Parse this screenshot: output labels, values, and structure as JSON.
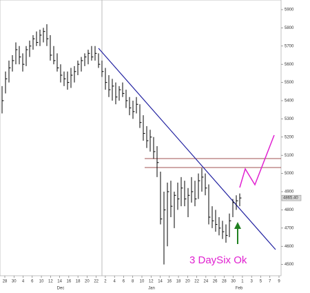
{
  "chart_data": {
    "type": "hlc",
    "annotation": "3 DaySix Ok",
    "ylim": [
      4438,
      5953
    ],
    "yticks": [
      4500,
      4600,
      4700,
      4800,
      4900,
      5000,
      5100,
      5200,
      5300,
      5400,
      5500,
      5600,
      5700,
      5800,
      5900
    ],
    "last_price": {
      "value": 4865.4,
      "label": "4865.40"
    },
    "x_labels": [
      "28",
      "30",
      "4",
      "6",
      "10",
      "12",
      "14",
      "16",
      "18",
      "20",
      "22",
      "2",
      "4",
      "6",
      "8",
      "10",
      "12",
      "14",
      "16",
      "18",
      "20",
      "22",
      "24",
      "26",
      "28",
      "30",
      "1",
      "3",
      "5",
      "7",
      "9"
    ],
    "months": [
      "Dec",
      "Jan",
      "Feb"
    ],
    "color": "#000000",
    "high": [
      5480,
      5560,
      5620,
      5650,
      5720,
      5700,
      5660,
      5700,
      5730,
      5760,
      5780,
      5790,
      5800,
      5820,
      5760,
      5700,
      5660,
      5600,
      5560,
      5560,
      5580,
      5590,
      5620,
      5640,
      5660,
      5680,
      5700,
      5700,
      5660,
      5620,
      5580,
      5540,
      5520,
      5500,
      5480,
      5500,
      5460,
      5420,
      5400,
      5420,
      5380,
      5320,
      5260,
      5240,
      5200,
      5150,
      5010,
      4900,
      4950,
      4960,
      4900,
      4950,
      4980,
      4960,
      4920,
      4980,
      4960,
      5000,
      5030,
      5000,
      4940,
      4820,
      4800,
      4760,
      4740,
      4720,
      4780,
      4860,
      4880,
      4890
    ],
    "low": [
      5330,
      5440,
      5500,
      5560,
      5600,
      5600,
      5560,
      5590,
      5640,
      5680,
      5700,
      5700,
      5720,
      5700,
      5620,
      5600,
      5560,
      5500,
      5480,
      5460,
      5470,
      5500,
      5540,
      5560,
      5590,
      5600,
      5620,
      5620,
      5580,
      5530,
      5460,
      5420,
      5400,
      5380,
      5400,
      5420,
      5360,
      5320,
      5300,
      5330,
      5250,
      5180,
      5140,
      5120,
      5080,
      4980,
      4720,
      4500,
      4600,
      4760,
      4700,
      4800,
      4820,
      4820,
      4760,
      4840,
      4820,
      4860,
      4900,
      4880,
      4720,
      4700,
      4680,
      4660,
      4640,
      4620,
      4650,
      4760,
      4800,
      4820
    ],
    "close": [
      5400,
      5520,
      5580,
      5620,
      5680,
      5640,
      5600,
      5680,
      5700,
      5740,
      5720,
      5760,
      5780,
      5740,
      5650,
      5620,
      5580,
      5540,
      5520,
      5500,
      5540,
      5560,
      5600,
      5620,
      5640,
      5660,
      5640,
      5660,
      5600,
      5560,
      5500,
      5460,
      5480,
      5420,
      5460,
      5440,
      5400,
      5360,
      5340,
      5380,
      5280,
      5220,
      5180,
      5200,
      5120,
      5060,
      4750,
      4800,
      4900,
      4820,
      4880,
      4860,
      4920,
      4860,
      4880,
      4900,
      4860,
      4960,
      4980,
      4920,
      4760,
      4740,
      4720,
      4700,
      4680,
      4660,
      4740,
      4840,
      4850,
      4865.4
    ]
  }
}
